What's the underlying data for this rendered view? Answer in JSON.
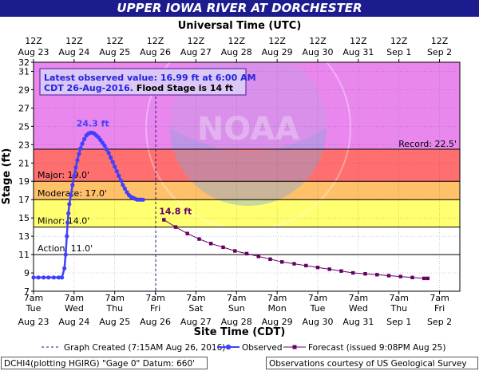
{
  "title": "UPPER IOWA RIVER AT DORCHESTER",
  "top_axis_label": "Universal Time (UTC)",
  "bottom_axis_label": "Site Time (CDT)",
  "y_axis_label": "Stage (ft)",
  "annotation": {
    "line1": "Latest observed value: 16.99 ft at 6:00 AM",
    "line2_a": "CDT 26-Aug-2016.",
    "line2_b": " Flood Stage is 14 ft"
  },
  "legend": {
    "created": "Graph Created (7:15AM Aug 26, 2016)",
    "observed": "Observed",
    "forecast": "Forecast (issued 9:08PM Aug 25)"
  },
  "footer": {
    "left": "DCHI4(plotting HGIRG) \"Gage 0\" Datum: 660'",
    "right": "Observations courtesy of US Geological Survey"
  },
  "colors": {
    "record": "#e987ef",
    "major": "#ff6f6f",
    "moderate": "#ffc06a",
    "minor": "#ffff6f",
    "action": "#ffffff",
    "observed": "#4040ff",
    "forecast": "#660066",
    "title_bg": "#1c1c8f"
  },
  "chart_data": {
    "type": "line",
    "y_range": [
      7,
      32
    ],
    "y_ticks": [
      7,
      9,
      11,
      13,
      15,
      17,
      19,
      21,
      23,
      25,
      27,
      29,
      31,
      32
    ],
    "x_domain": [
      "Aug 23 7am",
      "Sep 2 7pm"
    ],
    "bottom_ticks": [
      {
        "time": "7am",
        "day": "Tue",
        "date": "Aug 23"
      },
      {
        "time": "7am",
        "day": "Wed",
        "date": "Aug 24"
      },
      {
        "time": "7am",
        "day": "Thu",
        "date": "Aug 25"
      },
      {
        "time": "7am",
        "day": "Fri",
        "date": "Aug 26"
      },
      {
        "time": "7am",
        "day": "Sat",
        "date": "Aug 27"
      },
      {
        "time": "7am",
        "day": "Sun",
        "date": "Aug 28"
      },
      {
        "time": "7am",
        "day": "Mon",
        "date": "Aug 29"
      },
      {
        "time": "7am",
        "day": "Tue",
        "date": "Aug 30"
      },
      {
        "time": "7am",
        "day": "Wed",
        "date": "Aug 31"
      },
      {
        "time": "7am",
        "day": "Thu",
        "date": "Sep 1"
      },
      {
        "time": "7am",
        "day": "Fri",
        "date": "Sep 2"
      }
    ],
    "top_ticks": [
      {
        "time": "12Z",
        "date": "Aug 23"
      },
      {
        "time": "12Z",
        "date": "Aug 24"
      },
      {
        "time": "12Z",
        "date": "Aug 25"
      },
      {
        "time": "12Z",
        "date": "Aug 26"
      },
      {
        "time": "12Z",
        "date": "Aug 27"
      },
      {
        "time": "12Z",
        "date": "Aug 28"
      },
      {
        "time": "12Z",
        "date": "Aug 29"
      },
      {
        "time": "12Z",
        "date": "Aug 30"
      },
      {
        "time": "12Z",
        "date": "Aug 31"
      },
      {
        "time": "12Z",
        "date": "Sep 1"
      },
      {
        "time": "12Z",
        "date": "Sep 2"
      }
    ],
    "categories": [
      {
        "label": "Record: 22.5'",
        "stage": 22.5
      },
      {
        "label": "Major: 19.0'",
        "stage": 19.0
      },
      {
        "label": "Moderate: 17.0'",
        "stage": 17.0
      },
      {
        "label": "Minor: 14.0'",
        "stage": 14.0
      },
      {
        "label": "Action: 11.0'",
        "stage": 11.0
      }
    ],
    "graph_created_day": 3.01,
    "series": [
      {
        "name": "Observed",
        "points": [
          [
            0.0,
            8.5
          ],
          [
            0.12,
            8.5
          ],
          [
            0.25,
            8.5
          ],
          [
            0.37,
            8.5
          ],
          [
            0.5,
            8.5
          ],
          [
            0.62,
            8.5
          ],
          [
            0.7,
            8.5
          ],
          [
            0.76,
            9.5
          ],
          [
            0.79,
            11.0
          ],
          [
            0.82,
            13.0
          ],
          [
            0.84,
            14.5
          ],
          [
            0.86,
            15.5
          ],
          [
            0.88,
            16.5
          ],
          [
            0.92,
            17.5
          ],
          [
            0.96,
            18.6
          ],
          [
            1.0,
            19.6
          ],
          [
            1.04,
            20.5
          ],
          [
            1.08,
            21.3
          ],
          [
            1.12,
            22.0
          ],
          [
            1.16,
            22.6
          ],
          [
            1.2,
            23.1
          ],
          [
            1.25,
            23.6
          ],
          [
            1.3,
            24.0
          ],
          [
            1.35,
            24.2
          ],
          [
            1.4,
            24.3
          ],
          [
            1.45,
            24.3
          ],
          [
            1.5,
            24.2
          ],
          [
            1.55,
            24.0
          ],
          [
            1.6,
            23.8
          ],
          [
            1.65,
            23.5
          ],
          [
            1.7,
            23.2
          ],
          [
            1.75,
            22.9
          ],
          [
            1.8,
            22.5
          ],
          [
            1.85,
            22.1
          ],
          [
            1.9,
            21.6
          ],
          [
            1.95,
            21.1
          ],
          [
            2.0,
            20.6
          ],
          [
            2.05,
            20.1
          ],
          [
            2.1,
            19.6
          ],
          [
            2.15,
            19.1
          ],
          [
            2.2,
            18.6
          ],
          [
            2.25,
            18.2
          ],
          [
            2.3,
            17.8
          ],
          [
            2.35,
            17.5
          ],
          [
            2.4,
            17.3
          ],
          [
            2.45,
            17.2
          ],
          [
            2.5,
            17.1
          ],
          [
            2.55,
            17.0
          ],
          [
            2.6,
            17.0
          ],
          [
            2.65,
            17.0
          ],
          [
            2.7,
            16.99
          ]
        ],
        "peak_label": "24.3 ft"
      },
      {
        "name": "Forecast (issued 9:08PM Aug 25)",
        "points": [
          [
            3.21,
            14.8
          ],
          [
            3.5,
            14.0
          ],
          [
            3.79,
            13.3
          ],
          [
            4.08,
            12.7
          ],
          [
            4.37,
            12.2
          ],
          [
            4.67,
            11.8
          ],
          [
            4.96,
            11.4
          ],
          [
            5.25,
            11.1
          ],
          [
            5.54,
            10.8
          ],
          [
            5.83,
            10.5
          ],
          [
            6.12,
            10.2
          ],
          [
            6.42,
            10.0
          ],
          [
            6.71,
            9.8
          ],
          [
            7.0,
            9.6
          ],
          [
            7.29,
            9.4
          ],
          [
            7.58,
            9.2
          ],
          [
            7.87,
            9.0
          ],
          [
            8.17,
            8.9
          ],
          [
            8.46,
            8.8
          ],
          [
            8.75,
            8.7
          ],
          [
            9.04,
            8.6
          ],
          [
            9.33,
            8.5
          ],
          [
            9.62,
            8.4
          ],
          [
            9.71,
            8.4
          ]
        ],
        "peak_label": "14.8 ft"
      }
    ]
  }
}
